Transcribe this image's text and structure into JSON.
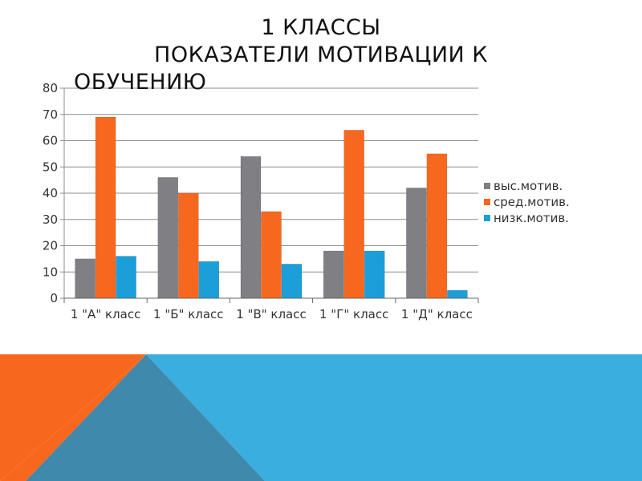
{
  "slide": {
    "title_lines": [
      "1 КЛАССЫ",
      "ПОКАЗАТЕЛИ МОТИВАЦИИ К",
      "ОБУЧЕНИЮ"
    ]
  },
  "chart_data": {
    "type": "bar",
    "title": "",
    "xlabel": "",
    "ylabel": "",
    "categories": [
      "1 \"А\" класс",
      "1 \"Б\" класс",
      "1 \"В\" класс",
      "1 \"Г\" класс",
      "1 \"Д\" класс"
    ],
    "series": [
      {
        "name": "выс.мотив.",
        "values": [
          15,
          46,
          54,
          18,
          42
        ],
        "color": "#7f7f84"
      },
      {
        "name": "сред.мотив.",
        "values": [
          69,
          40,
          33,
          64,
          55
        ],
        "color": "#f7681e"
      },
      {
        "name": "низк.мотив.",
        "values": [
          16,
          14,
          13,
          18,
          3
        ],
        "color": "#1c9fd9"
      }
    ],
    "ylim": [
      0,
      80
    ],
    "yticks": [
      0,
      10,
      20,
      30,
      40,
      50,
      60,
      70,
      80
    ],
    "grid": true,
    "legend": "right"
  },
  "colors": {
    "decor_orange": "#f7681e",
    "decor_blue": "#3aaedf",
    "decor_steel": "#3f89ac",
    "grid": "#8c8c8c"
  }
}
